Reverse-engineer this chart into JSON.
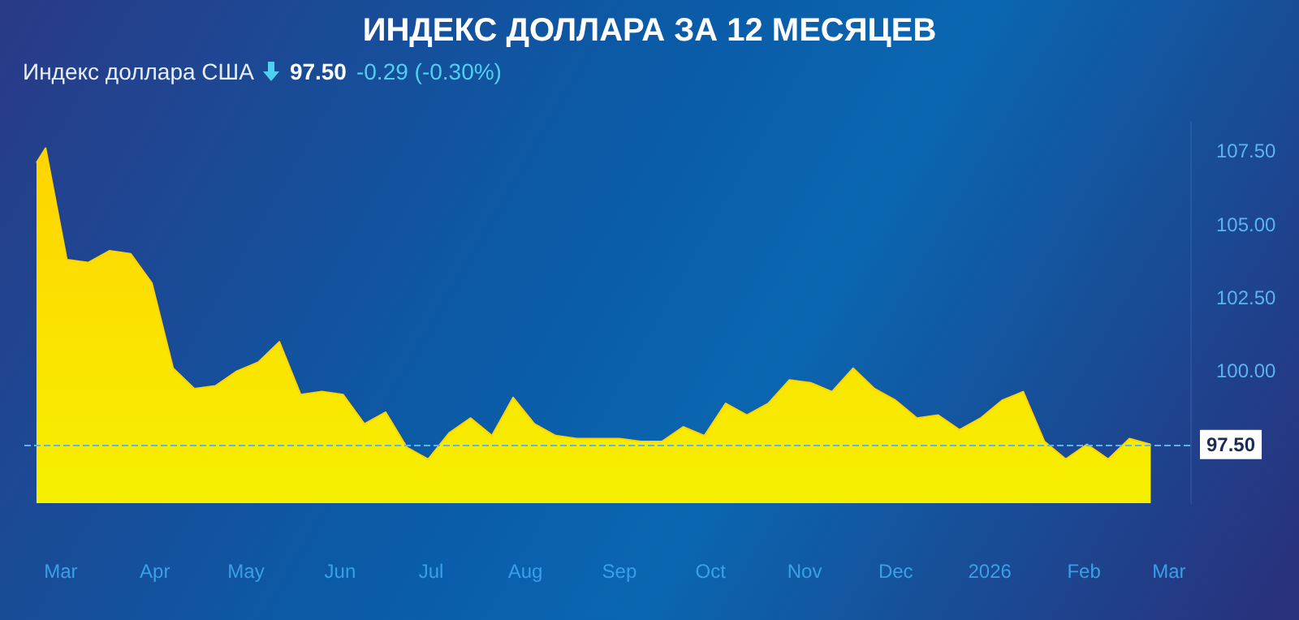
{
  "chart_data": {
    "type": "area",
    "title": "ИНДЕКС ДОЛЛАРА ЗА 12 МЕСЯЦЕВ",
    "subtitle": "Индекс доллара США",
    "annotations": [
      "97.50",
      "-0.29 (-0.30%)"
    ],
    "x": [
      "2025-02-21",
      "2025-02-24",
      "2025-03-03",
      "2025-03-10",
      "2025-03-17",
      "2025-03-24",
      "2025-03-31",
      "2025-04-07",
      "2025-04-14",
      "2025-04-21",
      "2025-04-28",
      "2025-05-05",
      "2025-05-12",
      "2025-05-19",
      "2025-05-26",
      "2025-06-02",
      "2025-06-09",
      "2025-06-16",
      "2025-06-23",
      "2025-06-30",
      "2025-07-07",
      "2025-07-14",
      "2025-07-21",
      "2025-07-28",
      "2025-08-04",
      "2025-08-11",
      "2025-08-18",
      "2025-08-25",
      "2025-09-01",
      "2025-09-08",
      "2025-09-15",
      "2025-09-22",
      "2025-09-29",
      "2025-10-06",
      "2025-10-13",
      "2025-10-20",
      "2025-10-27",
      "2025-11-03",
      "2025-11-10",
      "2025-11-17",
      "2025-11-24",
      "2025-12-01",
      "2025-12-08",
      "2025-12-15",
      "2025-12-22",
      "2025-12-29",
      "2026-01-05",
      "2026-01-12",
      "2026-01-19",
      "2026-01-26",
      "2026-02-02",
      "2026-02-09",
      "2026-02-16",
      "2026-02-23"
    ],
    "series": [
      {
        "color": "#ffd400",
        "values": [
          107.1,
          107.6,
          103.8,
          103.7,
          104.1,
          104.0,
          103.0,
          100.1,
          99.4,
          99.5,
          100.0,
          100.3,
          101.0,
          99.2,
          99.3,
          99.2,
          98.2,
          98.6,
          97.4,
          97.0,
          97.9,
          98.4,
          97.8,
          99.1,
          98.2,
          97.8,
          97.7,
          97.7,
          97.7,
          97.6,
          97.6,
          98.1,
          97.8,
          98.9,
          98.5,
          98.9,
          99.7,
          99.6,
          99.3,
          100.1,
          99.4,
          99.0,
          98.4,
          98.5,
          98.0,
          98.4,
          99.0,
          99.3,
          97.6,
          97.0,
          97.5,
          97.0,
          97.7,
          97.5
        ]
      }
    ],
    "xlim": [
      "2025-02-17",
      "2026-03-08"
    ],
    "xticks": [
      {
        "value": "2025-03-01",
        "label": "Mar"
      },
      {
        "value": "2025-04-01",
        "label": "Apr"
      },
      {
        "value": "2025-05-01",
        "label": "May"
      },
      {
        "value": "2025-06-01",
        "label": "Jun"
      },
      {
        "value": "2025-07-01",
        "label": "Jul"
      },
      {
        "value": "2025-08-01",
        "label": "Aug"
      },
      {
        "value": "2025-09-01",
        "label": "Sep"
      },
      {
        "value": "2025-10-01",
        "label": "Oct"
      },
      {
        "value": "2025-11-01",
        "label": "Nov"
      },
      {
        "value": "2025-12-01",
        "label": "Dec"
      },
      {
        "value": "2026-01-01",
        "label": "2026"
      },
      {
        "value": "2026-02-01",
        "label": "Feb"
      },
      {
        "value": "2026-03-01",
        "label": "Mar"
      }
    ],
    "ylim": [
      95.5,
      108.5
    ],
    "yticks": [
      {
        "value": 100,
        "label": "100.00"
      },
      {
        "value": 102.5,
        "label": "102.50"
      },
      {
        "value": 105,
        "label": "105.00"
      },
      {
        "value": 107.5,
        "label": "107.50"
      }
    ],
    "ref_lines": [
      {
        "axis": "y",
        "value": 97.5,
        "label": "97.50",
        "color": "#5ab4f0",
        "line_style": "dashed"
      }
    ],
    "grid": false
  }
}
